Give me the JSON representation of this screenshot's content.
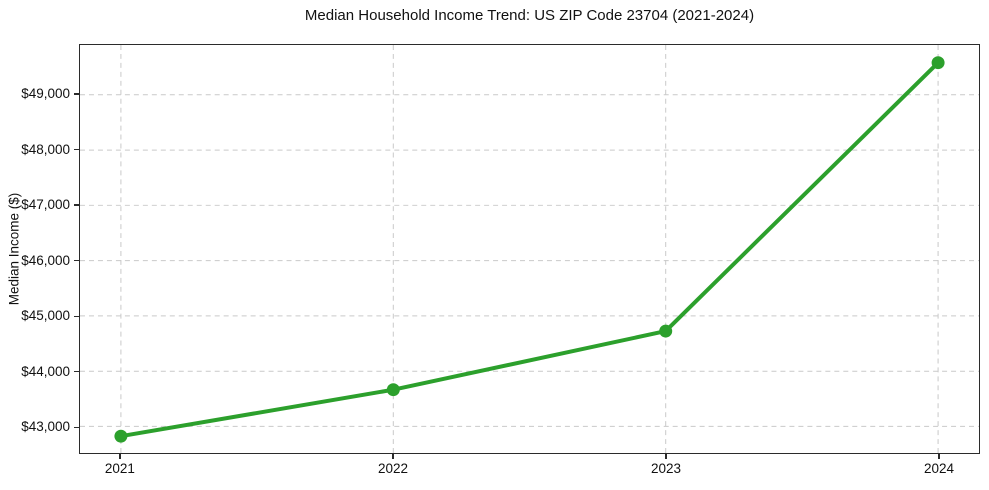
{
  "chart_data": {
    "type": "line",
    "title": "Median Household Income Trend: US ZIP Code 23704 (2021-2024)",
    "xlabel": "",
    "ylabel": "Median Income ($)",
    "categories": [
      "2021",
      "2022",
      "2023",
      "2024"
    ],
    "series": [
      {
        "name": "Median Household Income",
        "values": [
          42825,
          43665,
          44725,
          49580
        ]
      }
    ],
    "ylim": [
      42520,
      49900
    ],
    "yticks": [
      43000,
      44000,
      45000,
      46000,
      47000,
      48000,
      49000
    ],
    "ytick_labels": [
      "$43,000",
      "$44,000",
      "$45,000",
      "$46,000",
      "$47,000",
      "$48,000",
      "$49,000"
    ],
    "grid": true,
    "grid_style": "dashed",
    "legend": false,
    "legend_position": "none",
    "x_axis_fraction_padding": 0.04545,
    "colors": {
      "line": "#2ca02c",
      "marker": "#2ca02c",
      "grid": "#c9c9c9",
      "spine": "#2b2b2b",
      "text": "#111111",
      "background": "#ffffff"
    }
  }
}
